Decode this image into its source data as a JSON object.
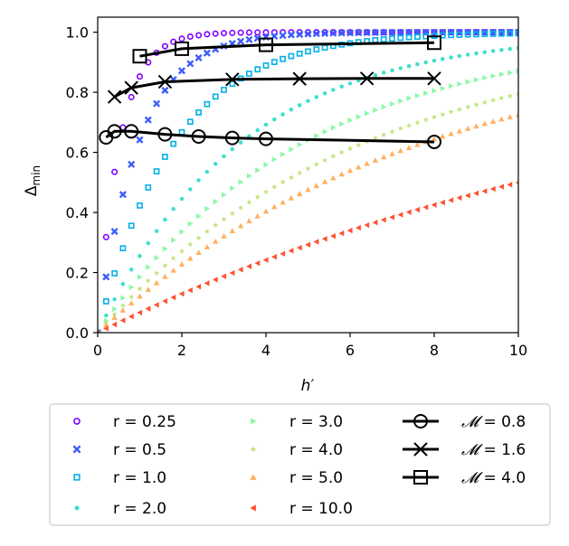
{
  "chart_data": {
    "type": "scatter",
    "xlabel": "h′",
    "ylabel_main": "Δ",
    "ylabel_sub": "min",
    "xlim": [
      0,
      10
    ],
    "ylim": [
      0,
      1.05
    ],
    "xticks": [
      0,
      2,
      4,
      6,
      8,
      10
    ],
    "xtick_labels": [
      "0",
      "2",
      "4",
      "6",
      "8",
      "10"
    ],
    "yticks": [
      0.0,
      0.2,
      0.4,
      0.6,
      0.8,
      1.0
    ],
    "ytick_labels": [
      "0.0",
      "0.2",
      "0.4",
      "0.6",
      "0.8",
      "1.0"
    ],
    "legend_position": "bottom",
    "series": [
      {
        "name": "r = 0.25",
        "label": "r = 0.25",
        "r": 0.25,
        "marker": "circle-open",
        "color": "#7f00ff"
      },
      {
        "name": "r = 0.5",
        "label": "r = 0.5",
        "r": 0.5,
        "marker": "x-thick",
        "color": "#3c5ef9"
      },
      {
        "name": "r = 1.0",
        "label": "r = 1.0",
        "r": 1.0,
        "marker": "square-open",
        "color": "#05b0e6"
      },
      {
        "name": "r = 2.0",
        "label": "r = 2.0",
        "r": 2.0,
        "marker": "dot",
        "color": "#3ee0cc"
      },
      {
        "name": "r = 3.0",
        "label": "r = 3.0",
        "r": 3.0,
        "marker": "triangle-right",
        "color": "#8cf8a8"
      },
      {
        "name": "r = 4.0",
        "label": "r = 4.0",
        "r": 4.0,
        "marker": "star",
        "color": "#bfe57c"
      },
      {
        "name": "r = 5.0",
        "label": "r = 5.0",
        "r": 5.0,
        "marker": "triangle-up",
        "color": "#ffb060"
      },
      {
        "name": "r = 10.0",
        "label": "r = 10.0",
        "r": 10.0,
        "marker": "triangle-left",
        "color": "#ff5030"
      }
    ],
    "m_series": [
      {
        "name": "M = 0.8",
        "label_pre": "𝓜",
        "label_post": " = 0.8",
        "marker": "circle",
        "x": [
          0.2,
          0.4,
          0.8,
          1.6,
          2.4,
          3.2,
          4.0,
          8.0
        ],
        "y": [
          0.65,
          0.67,
          0.67,
          0.66,
          0.653,
          0.648,
          0.645,
          0.635
        ]
      },
      {
        "name": "M = 1.6",
        "label_pre": "𝓜",
        "label_post": " = 1.6",
        "marker": "x",
        "x": [
          0.4,
          0.8,
          1.6,
          3.2,
          4.8,
          6.4,
          8.0
        ],
        "y": [
          0.785,
          0.815,
          0.835,
          0.843,
          0.845,
          0.846,
          0.846
        ]
      },
      {
        "name": "M = 4.0",
        "label_pre": "𝓜",
        "label_post": " = 4.0",
        "marker": "square",
        "x": [
          1.0,
          2.0,
          4.0,
          8.0
        ],
        "y": [
          0.92,
          0.945,
          0.958,
          0.965
        ]
      }
    ]
  }
}
